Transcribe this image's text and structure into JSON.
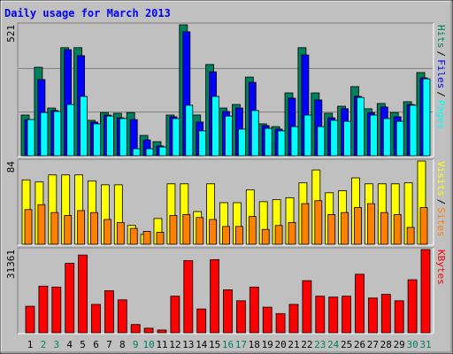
{
  "title": "Daily usage for March 2013",
  "legend_separator": "/",
  "chart_data": [
    {
      "type": "bar",
      "ylim": [
        0,
        521
      ],
      "yticks": [
        521
      ],
      "series": [
        {
          "name": "Hits",
          "color": "#00805c",
          "values": [
            162,
            352,
            190,
            430,
            430,
            141,
            172,
            169,
            172,
            81,
            56,
            162,
            521,
            162,
            363,
            190,
            204,
            313,
            127,
            116,
            250,
            430,
            250,
            169,
            197,
            275,
            187,
            208,
            172,
            215,
            331
          ]
        },
        {
          "name": "Files",
          "color": "#0000ff",
          "values": [
            144,
            303,
            180,
            422,
            398,
            134,
            162,
            151,
            144,
            63,
            39,
            155,
            493,
            134,
            334,
            176,
            190,
            292,
            120,
            106,
            229,
            401,
            222,
            151,
            187,
            236,
            172,
            194,
            155,
            204,
            310
          ]
        },
        {
          "name": "Pages",
          "color": "#00ffff",
          "values": [
            144,
            172,
            176,
            204,
            236,
            127,
            158,
            148,
            28,
            28,
            35,
            148,
            201,
            99,
            236,
            158,
            106,
            180,
            109,
            99,
            116,
            162,
            116,
            141,
            137,
            232,
            162,
            148,
            137,
            201,
            306
          ]
        }
      ]
    },
    {
      "type": "bar",
      "ylim": [
        0,
        84
      ],
      "yticks": [
        84
      ],
      "series": [
        {
          "name": "Visits",
          "color": "#ffff00",
          "values": [
            65,
            63,
            70,
            70,
            70,
            64,
            60,
            60,
            19,
            10,
            26,
            61,
            61,
            33,
            61,
            42,
            42,
            55,
            43,
            45,
            47,
            62,
            75,
            52,
            54,
            67,
            61,
            61,
            61,
            62,
            84
          ]
        },
        {
          "name": "Sites",
          "color": "#ff8000",
          "values": [
            35,
            40,
            32,
            29,
            34,
            32,
            25,
            22,
            16,
            13,
            12,
            29,
            30,
            27,
            25,
            18,
            18,
            28,
            15,
            19,
            22,
            41,
            44,
            30,
            32,
            37,
            41,
            32,
            30,
            17,
            37
          ]
        }
      ]
    },
    {
      "type": "bar",
      "ylim": [
        0,
        31361
      ],
      "yticks": [
        31361
      ],
      "categories": [
        "1",
        "2",
        "3",
        "4",
        "5",
        "6",
        "7",
        "8",
        "9",
        "10",
        "11",
        "12",
        "13",
        "14",
        "15",
        "16",
        "17",
        "18",
        "19",
        "20",
        "21",
        "22",
        "23",
        "24",
        "25",
        "26",
        "27",
        "28",
        "29",
        "30",
        "31"
      ],
      "category_colors": [
        "#000000",
        "#00805c",
        "#00805c",
        "#000000",
        "#000000",
        "#000000",
        "#000000",
        "#000000",
        "#00805c",
        "#00805c",
        "#000000",
        "#000000",
        "#000000",
        "#000000",
        "#000000",
        "#00805c",
        "#00805c",
        "#000000",
        "#000000",
        "#000000",
        "#000000",
        "#000000",
        "#00805c",
        "#00805c",
        "#000000",
        "#000000",
        "#000000",
        "#000000",
        "#000000",
        "#00805c",
        "#00805c"
      ],
      "series": [
        {
          "name": "KBytes",
          "color": "#ff0000",
          "values": [
            9994,
            17576,
            17231,
            26191,
            29293,
            10683,
            15852,
            12406,
            3102,
            1723,
            1034,
            13785,
            27225,
            8960,
            27570,
            16197,
            12062,
            17231,
            9649,
            7237,
            10683,
            19643,
            13785,
            13440,
            13785,
            22055,
            13095,
            14474,
            12062,
            19988,
            31361
          ]
        }
      ]
    }
  ]
}
